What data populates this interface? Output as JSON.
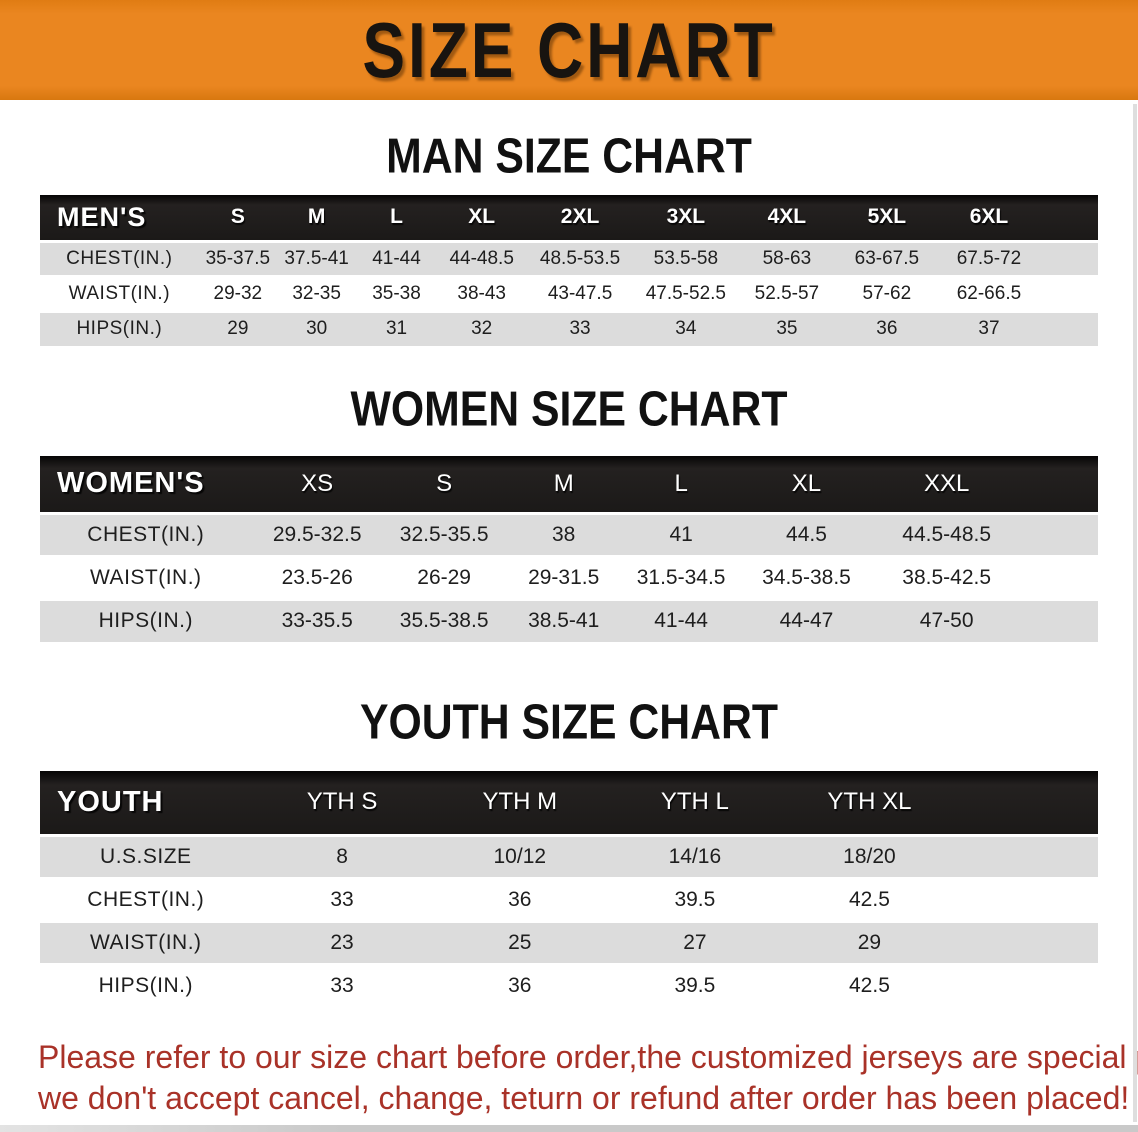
{
  "banner": {
    "title": "SIZE CHART"
  },
  "sections": [
    {
      "heading": "MAN SIZE CHART",
      "table": {
        "label": "MEN'S",
        "columns": [
          "S",
          "M",
          "L",
          "XL",
          "2XL",
          "3XL",
          "4XL",
          "5XL",
          "6XL"
        ],
        "rows": [
          {
            "label": "CHEST(IN.)",
            "values": [
              "35-37.5",
              "37.5-41",
              "41-44",
              "44-48.5",
              "48.5-53.5",
              "53.5-58",
              "58-63",
              "63-67.5",
              "67.5-72"
            ]
          },
          {
            "label": "WAIST(IN.)",
            "values": [
              "29-32",
              "32-35",
              "35-38",
              "38-43",
              "43-47.5",
              "47.5-52.5",
              "52.5-57",
              "57-62",
              "62-66.5"
            ]
          },
          {
            "label": "HIPS(IN.)",
            "values": [
              "29",
              "30",
              "31",
              "32",
              "33",
              "34",
              "35",
              "36",
              "37"
            ]
          }
        ]
      }
    },
    {
      "heading": "WOMEN SIZE CHART",
      "table": {
        "label": "WOMEN'S",
        "columns": [
          "XS",
          "S",
          "M",
          "L",
          "XL",
          "XXL"
        ],
        "rows": [
          {
            "label": "CHEST(IN.)",
            "values": [
              "29.5-32.5",
              "32.5-35.5",
              "38",
              "41",
              "44.5",
              "44.5-48.5"
            ]
          },
          {
            "label": "WAIST(IN.)",
            "values": [
              "23.5-26",
              "26-29",
              "29-31.5",
              "31.5-34.5",
              "34.5-38.5",
              "38.5-42.5"
            ]
          },
          {
            "label": "HIPS(IN.)",
            "values": [
              "33-35.5",
              "35.5-38.5",
              "38.5-41",
              "41-44",
              "44-47",
              "47-50"
            ]
          }
        ]
      }
    },
    {
      "heading": "YOUTH SIZE CHART",
      "table": {
        "label": "YOUTH",
        "columns": [
          "YTH S",
          "YTH M",
          "YTH L",
          "YTH XL"
        ],
        "rows": [
          {
            "label": "U.S.SIZE",
            "values": [
              "8",
              "10/12",
              "14/16",
              "18/20"
            ]
          },
          {
            "label": "CHEST(IN.)",
            "values": [
              "33",
              "36",
              "39.5",
              "42.5"
            ]
          },
          {
            "label": "WAIST(IN.)",
            "values": [
              "23",
              "25",
              "27",
              "29"
            ]
          },
          {
            "label": "HIPS(IN.)",
            "values": [
              "33",
              "36",
              "39.5",
              "42.5"
            ]
          }
        ]
      }
    }
  ],
  "disclaimer": {
    "line1": "Please refer to our size chart before order,the customized jerseys are special products,",
    "line2": "we don't accept cancel, change, teturn or refund after order has been placed!"
  },
  "colors": {
    "banner_bg": "#EA8620",
    "table_header_bg": "#1B1918",
    "row_alt_bg": "#DCDCDC",
    "disclaimer_text": "#A93228"
  }
}
